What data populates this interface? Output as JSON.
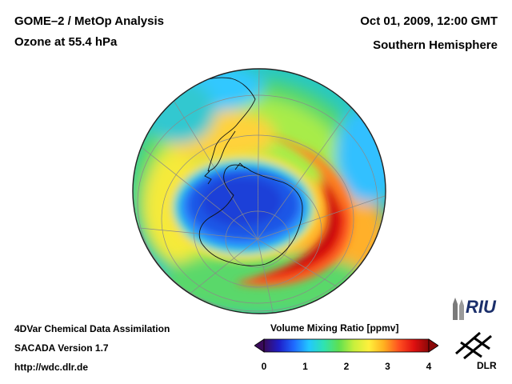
{
  "header": {
    "title": "GOME–2 / MetOp Analysis",
    "subtitle": "Ozone at 55.4 hPa",
    "datetime": "Oct 01, 2009, 12:00 GMT",
    "region": "Southern Hemisphere"
  },
  "footer": {
    "line1": "4DVar Chemical Data Assimilation",
    "line2": "SACADA Version 1.7",
    "line3": "http://wdc.dlr.de"
  },
  "colorbar": {
    "title": "Volume Mixing Ratio [ppmv]",
    "ticks": [
      "0",
      "1",
      "2",
      "3",
      "4"
    ],
    "range": [
      0,
      4
    ],
    "colors": [
      "#3a0a5a",
      "#1e1ec8",
      "#1f6bff",
      "#22c8ff",
      "#2fe3b0",
      "#5fe050",
      "#c8f03c",
      "#fff03c",
      "#ffb020",
      "#ff5020",
      "#e01010",
      "#8a0808"
    ]
  },
  "logos": {
    "riu": "RIU",
    "dlr": "DLR"
  },
  "map": {
    "projection": "orthographic-south-polar",
    "ozone_hole_color": "#1f56e6",
    "ozone_max_color": "#e01010"
  }
}
